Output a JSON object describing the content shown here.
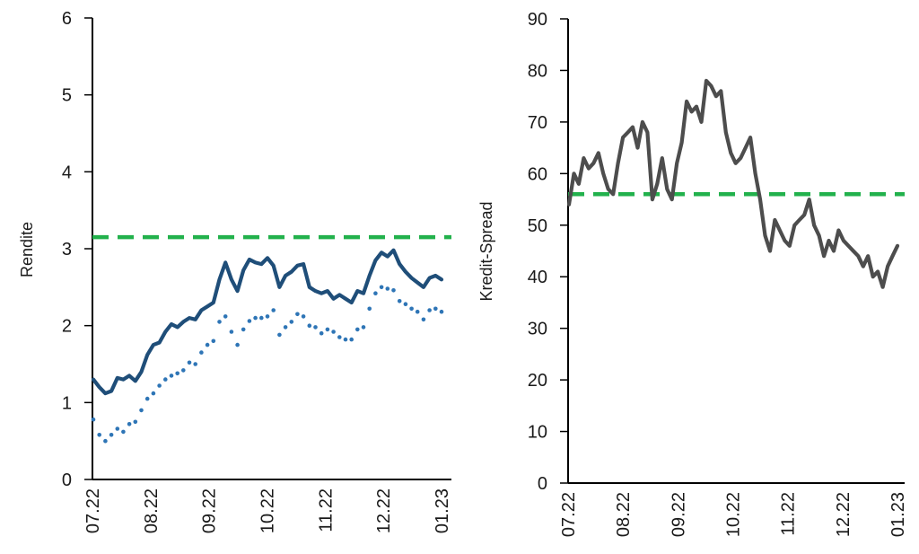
{
  "chart_data": [
    {
      "type": "line",
      "xlabel": "",
      "ylabel": "Rendite",
      "ylim": [
        0,
        6
      ],
      "y_ticks": [
        "0",
        "1",
        "2",
        "3",
        "4",
        "5",
        "6"
      ],
      "x_tick_labels": [
        "07.22",
        "08.22",
        "09.22",
        "10.22",
        "11.22",
        "12.22",
        "01.23"
      ],
      "grid": false,
      "legend": "none",
      "reference_line": {
        "value": 3.15,
        "color": "#22b14c",
        "style": "dashed"
      },
      "series": [
        {
          "color": "#1f4e79",
          "style": "solid",
          "values": [
            1.3,
            1.2,
            1.12,
            1.15,
            1.32,
            1.3,
            1.35,
            1.28,
            1.4,
            1.62,
            1.75,
            1.78,
            1.92,
            2.02,
            1.98,
            2.05,
            2.1,
            2.08,
            2.2,
            2.25,
            2.3,
            2.6,
            2.82,
            2.6,
            2.45,
            2.72,
            2.86,
            2.82,
            2.8,
            2.88,
            2.78,
            2.5,
            2.65,
            2.7,
            2.78,
            2.8,
            2.5,
            2.45,
            2.42,
            2.45,
            2.35,
            2.4,
            2.35,
            2.3,
            2.45,
            2.42,
            2.65,
            2.85,
            2.95,
            2.9,
            2.98,
            2.8,
            2.7,
            2.62,
            2.56,
            2.5,
            2.62,
            2.65,
            2.6
          ]
        },
        {
          "color": "#2e75b6",
          "style": "dotted",
          "values": [
            0.78,
            0.58,
            0.5,
            0.58,
            0.66,
            0.62,
            0.72,
            0.75,
            0.9,
            1.05,
            1.12,
            1.22,
            1.3,
            1.35,
            1.38,
            1.42,
            1.52,
            1.5,
            1.65,
            1.75,
            1.8,
            2.05,
            2.12,
            1.92,
            1.75,
            1.95,
            2.06,
            2.1,
            2.1,
            2.12,
            2.2,
            1.88,
            1.98,
            2.05,
            2.15,
            2.12,
            2.0,
            1.98,
            1.9,
            1.95,
            1.92,
            1.85,
            1.82,
            1.82,
            1.95,
            1.98,
            2.22,
            2.42,
            2.5,
            2.48,
            2.46,
            2.32,
            2.28,
            2.22,
            2.18,
            2.08,
            2.2,
            2.22,
            2.18
          ]
        }
      ]
    },
    {
      "type": "line",
      "xlabel": "",
      "ylabel": "Kredit-Spread",
      "ylim": [
        0,
        90
      ],
      "y_ticks": [
        "0",
        "10",
        "20",
        "30",
        "40",
        "50",
        "60",
        "70",
        "80",
        "90"
      ],
      "x_tick_labels": [
        "07.22",
        "08.22",
        "09.22",
        "10.22",
        "11.22",
        "12.22",
        "01.23"
      ],
      "grid": false,
      "legend": "none",
      "reference_line": {
        "value": 56,
        "color": "#22b14c",
        "style": "dashed"
      },
      "series": [
        {
          "color": "#4d4d4d",
          "style": "solid",
          "values": [
            54,
            60,
            58,
            63,
            61,
            62,
            64,
            60,
            57,
            56,
            62,
            67,
            68,
            69,
            65,
            70,
            68,
            55,
            58,
            63,
            57,
            55,
            62,
            66,
            74,
            72,
            73,
            70,
            78,
            77,
            75,
            76,
            68,
            64,
            62,
            63,
            65,
            67,
            60,
            55,
            48,
            45,
            51,
            49,
            47,
            46,
            50,
            51,
            52,
            55,
            50,
            48,
            44,
            47,
            45,
            49,
            47,
            46,
            45,
            44,
            42,
            44,
            40,
            41,
            38,
            42,
            44,
            46
          ]
        }
      ]
    }
  ]
}
